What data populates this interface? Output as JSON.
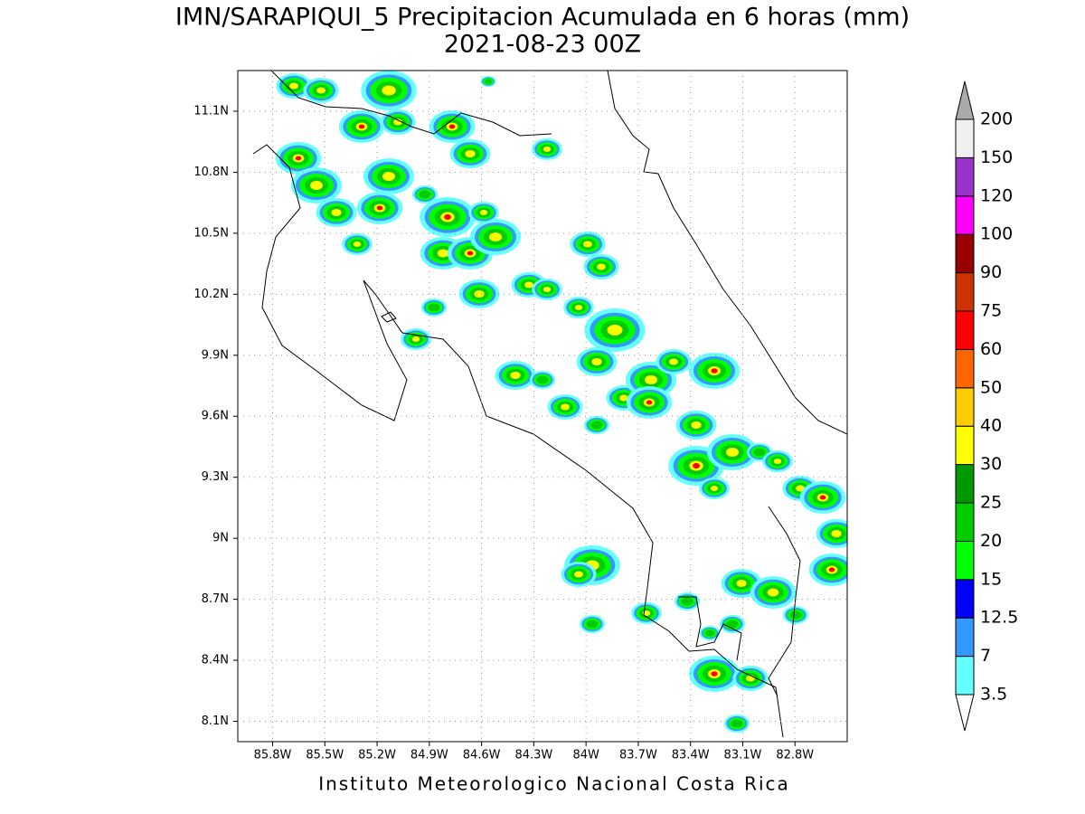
{
  "chart_data": {
    "type": "map",
    "title": "IMN/SARAPIQUI_5 Precipitacion Acumulada en 6 horas (mm)",
    "subtitle": "2021-08-23 00Z",
    "footer": "Instituto Meteorologico Nacional Costa Rica",
    "xlim": [
      -86.0,
      -82.5
    ],
    "ylim": [
      8.0,
      11.3
    ],
    "xticks": [
      {
        "value": -85.8,
        "label": "85.8W"
      },
      {
        "value": -85.5,
        "label": "85.5W"
      },
      {
        "value": -85.2,
        "label": "85.2W"
      },
      {
        "value": -84.9,
        "label": "84.9W"
      },
      {
        "value": -84.6,
        "label": "84.6W"
      },
      {
        "value": -84.3,
        "label": "84.3W"
      },
      {
        "value": -84.0,
        "label": "84W"
      },
      {
        "value": -83.7,
        "label": "83.7W"
      },
      {
        "value": -83.4,
        "label": "83.4W"
      },
      {
        "value": -83.1,
        "label": "83.1W"
      },
      {
        "value": -82.8,
        "label": "82.8W"
      }
    ],
    "yticks": [
      {
        "value": 8.1,
        "label": "8.1N"
      },
      {
        "value": 8.4,
        "label": "8.4N"
      },
      {
        "value": 8.7,
        "label": "8.7N"
      },
      {
        "value": 9.0,
        "label": "9N"
      },
      {
        "value": 9.3,
        "label": "9.3N"
      },
      {
        "value": 9.6,
        "label": "9.6N"
      },
      {
        "value": 9.9,
        "label": "9.9N"
      },
      {
        "value": 10.2,
        "label": "10.2N"
      },
      {
        "value": 10.5,
        "label": "10.5N"
      },
      {
        "value": 10.8,
        "label": "10.8N"
      },
      {
        "value": 11.1,
        "label": "11.1N"
      }
    ],
    "grid": true,
    "colorbar": {
      "levels": [
        3.5,
        7,
        12.5,
        15,
        20,
        25,
        30,
        40,
        50,
        60,
        75,
        90,
        100,
        120,
        150,
        200
      ],
      "colors": [
        "#ffffff",
        "#66ffff",
        "#3399ff",
        "#0000ff",
        "#00ff00",
        "#00cc00",
        "#009900",
        "#ffff00",
        "#ffcc00",
        "#ff6600",
        "#ff0000",
        "#cc3300",
        "#990000",
        "#ff00ff",
        "#9933cc",
        "#f0f0f0",
        "#aaaaaa"
      ]
    }
  }
}
